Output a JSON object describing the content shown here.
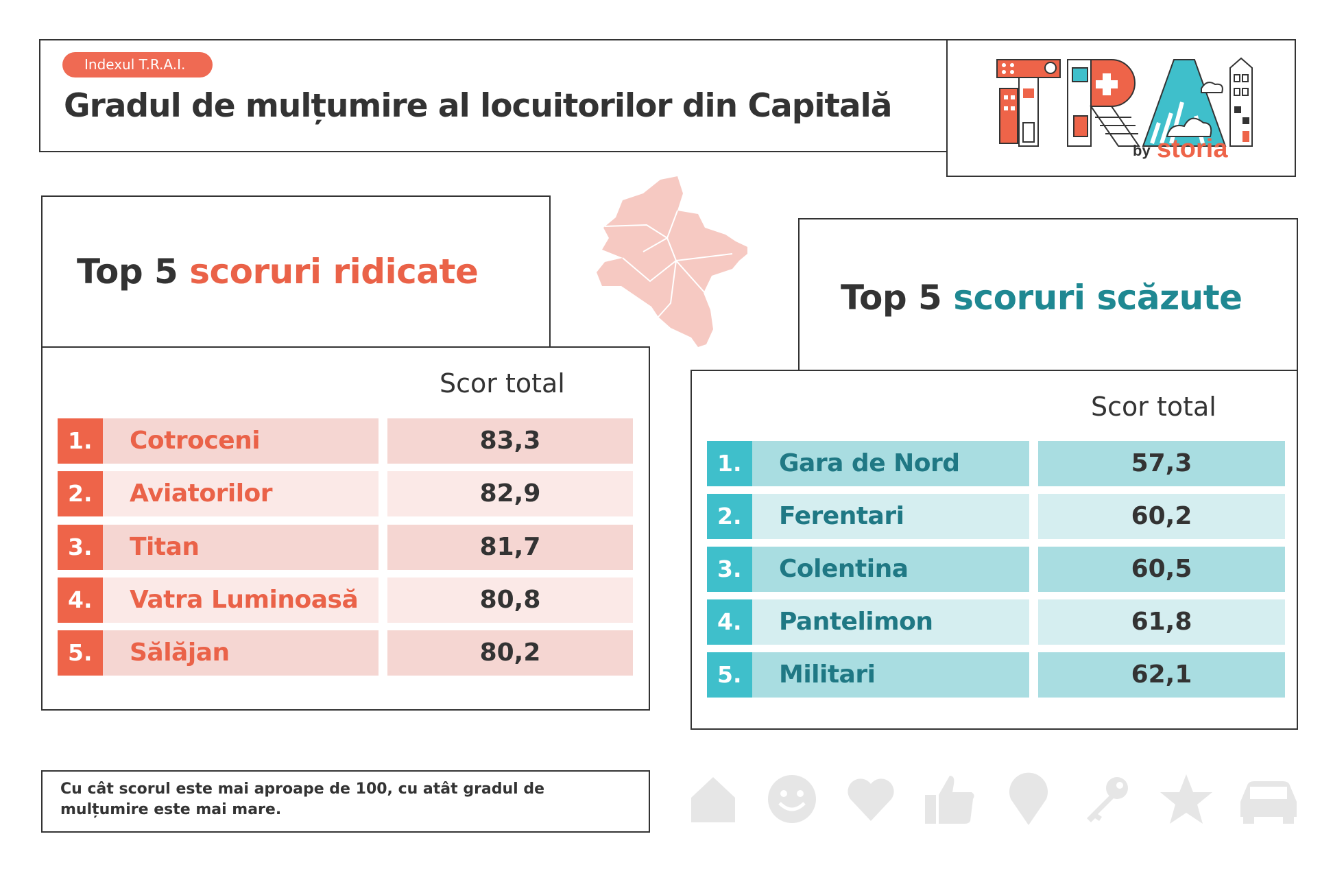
{
  "header": {
    "badge": "Indexul T.R.A.I.",
    "title": "Gradul de mulțumire al locuitorilor din Capitală"
  },
  "logo": {
    "letters": [
      "T",
      "R",
      "A",
      "I"
    ],
    "by": "by",
    "brand": "storia"
  },
  "top_high": {
    "heading_prefix": "Top 5",
    "heading_highlight": "scoruri ridicate",
    "column_header": "Scor total",
    "rows": [
      {
        "rank": "1.",
        "name": "Cotroceni",
        "score": "83,3"
      },
      {
        "rank": "2.",
        "name": "Aviatorilor",
        "score": "82,9"
      },
      {
        "rank": "3.",
        "name": "Titan",
        "score": "81,7"
      },
      {
        "rank": "4.",
        "name": "Vatra Luminoasă",
        "score": "80,8"
      },
      {
        "rank": "5.",
        "name": "Sălăjan",
        "score": "80,2"
      }
    ]
  },
  "top_low": {
    "heading_prefix": "Top 5",
    "heading_highlight": "scoruri scăzute",
    "column_header": "Scor total",
    "rows": [
      {
        "rank": "1.",
        "name": "Gara de Nord",
        "score": "57,3"
      },
      {
        "rank": "2.",
        "name": "Ferentari",
        "score": "60,2"
      },
      {
        "rank": "3.",
        "name": "Colentina",
        "score": "60,5"
      },
      {
        "rank": "4.",
        "name": "Pantelimon",
        "score": "61,8"
      },
      {
        "rank": "5.",
        "name": "Militari",
        "score": "62,1"
      }
    ]
  },
  "footnote": "Cu cât scorul este mai aproape de 100, cu atât gradul de mulțumire este mai mare.",
  "colors": {
    "accent_red": "#ee6449",
    "accent_teal": "#3fbfcb",
    "text_teal": "#1f8892",
    "map_pink": "#f6c9c2",
    "icon_grey": "#e6e6e6"
  },
  "icons": [
    "home-icon",
    "smiley-icon",
    "heart-icon",
    "thumbs-up-icon",
    "map-pin-icon",
    "key-icon",
    "star-icon",
    "car-icon"
  ]
}
